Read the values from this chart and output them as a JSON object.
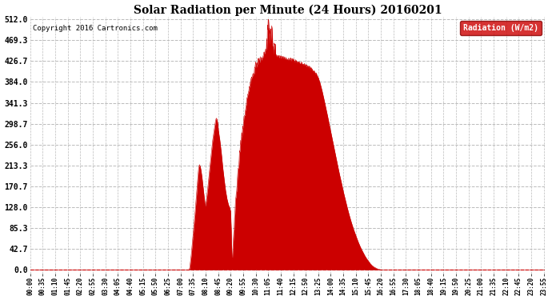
{
  "title": "Solar Radiation per Minute (24 Hours) 20160201",
  "copyright_text": "Copyright 2016 Cartronics.com",
  "legend_label": "Radiation (W/m2)",
  "legend_bg": "#cc0000",
  "legend_text_color": "#ffffff",
  "fill_color": "#cc0000",
  "line_color": "#cc0000",
  "bg_color": "#ffffff",
  "plot_bg_color": "#ffffff",
  "grid_color": "#bbbbbb",
  "dashed_line_color": "#cc0000",
  "ytick_values": [
    0.0,
    42.7,
    85.3,
    128.0,
    170.7,
    213.3,
    256.0,
    298.7,
    341.3,
    384.0,
    426.7,
    469.3,
    512.0
  ],
  "ymax": 512.0,
  "xtick_labels": [
    "00:00",
    "00:35",
    "01:10",
    "01:45",
    "02:20",
    "02:55",
    "03:30",
    "04:05",
    "04:40",
    "05:15",
    "05:50",
    "06:25",
    "07:00",
    "07:35",
    "08:10",
    "08:45",
    "09:20",
    "09:55",
    "10:30",
    "11:05",
    "11:40",
    "12:15",
    "12:50",
    "13:25",
    "14:00",
    "14:35",
    "15:10",
    "15:45",
    "16:20",
    "16:55",
    "17:30",
    "18:05",
    "18:40",
    "19:15",
    "19:50",
    "20:25",
    "21:00",
    "21:35",
    "22:10",
    "22:45",
    "23:20",
    "23:55"
  ]
}
